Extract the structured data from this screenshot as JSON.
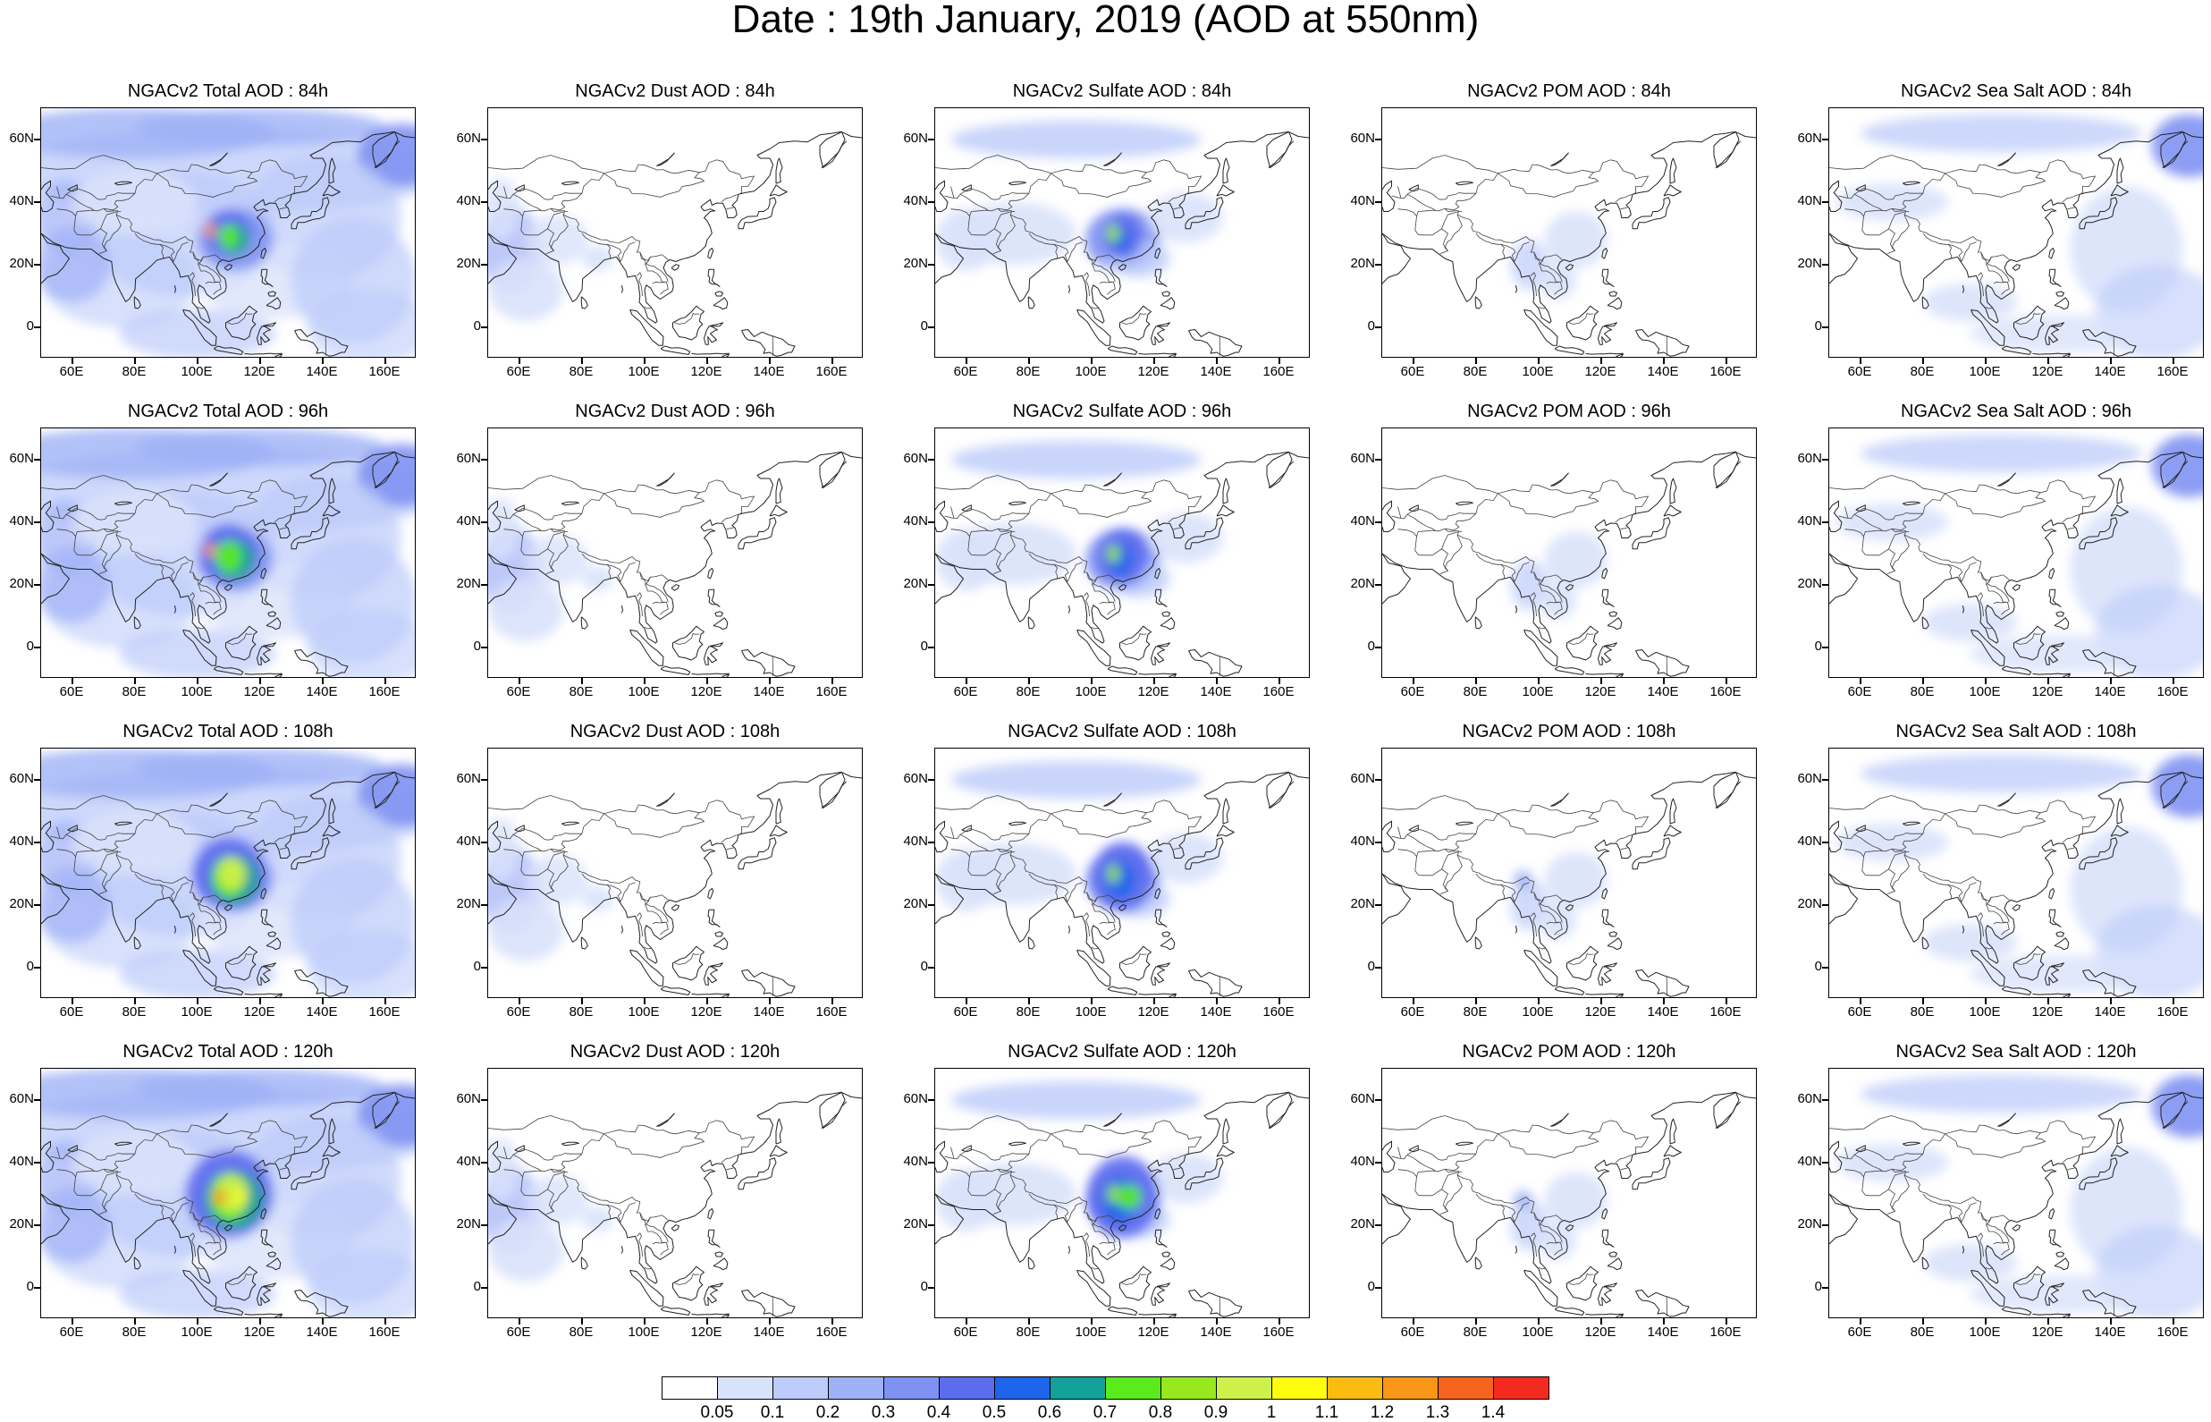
{
  "title": "Date : 19th January, 2019 (AOD at 550nm)",
  "lon_ticks": [
    "60E",
    "80E",
    "100E",
    "120E",
    "140E",
    "160E"
  ],
  "lat_ticks": [
    "60N",
    "40N",
    "20N",
    "0"
  ],
  "map_extent": {
    "lon": [
      50,
      170
    ],
    "lat": [
      -10,
      70
    ]
  },
  "colorbar": {
    "colors": [
      "#ffffff",
      "#d9e2fb",
      "#bccbfa",
      "#9fb1f6",
      "#7f92f2",
      "#5c6cee",
      "#1e64ec",
      "#11a09a",
      "#5bea1b",
      "#98e81e",
      "#cdf04a",
      "#fffd0d",
      "#fbbb11",
      "#f99517",
      "#f5631c",
      "#f22b1e"
    ],
    "labels": [
      "0.05",
      "0.1",
      "0.2",
      "0.3",
      "0.4",
      "0.5",
      "0.6",
      "0.7",
      "0.8",
      "0.9",
      "1",
      "1.1",
      "1.2",
      "1.3",
      "1.4"
    ]
  },
  "rows": [
    {
      "hour": "84h",
      "titles": [
        "NGACv2 Total AOD : 84h",
        "NGACv2 Dust AOD : 84h",
        "NGACv2 Sulfate AOD : 84h",
        "NGACv2 POM AOD : 84h",
        "NGACv2 Sea Salt AOD : 84h"
      ]
    },
    {
      "hour": "96h",
      "titles": [
        "NGACv2 Total AOD : 96h",
        "NGACv2 Dust AOD : 96h",
        "NGACv2 Sulfate AOD : 96h",
        "NGACv2 POM AOD : 96h",
        "NGACv2 Sea Salt AOD : 96h"
      ]
    },
    {
      "hour": "108h",
      "titles": [
        "NGACv2 Total AOD : 108h",
        "NGACv2 Dust AOD : 108h",
        "NGACv2 Sulfate AOD : 108h",
        "NGACv2 POM AOD : 108h",
        "NGACv2 Sea Salt AOD : 108h"
      ]
    },
    {
      "hour": "120h",
      "titles": [
        "NGACv2 Total AOD : 120h",
        "NGACv2 Dust AOD : 120h",
        "NGACv2 Sulfate AOD : 120h",
        "NGACv2 POM AOD : 120h",
        "NGACv2 Sea Salt  AOD : 120h"
      ]
    }
  ],
  "species": [
    "Total",
    "Dust",
    "Sulfate",
    "POM",
    "Sea Salt"
  ]
}
